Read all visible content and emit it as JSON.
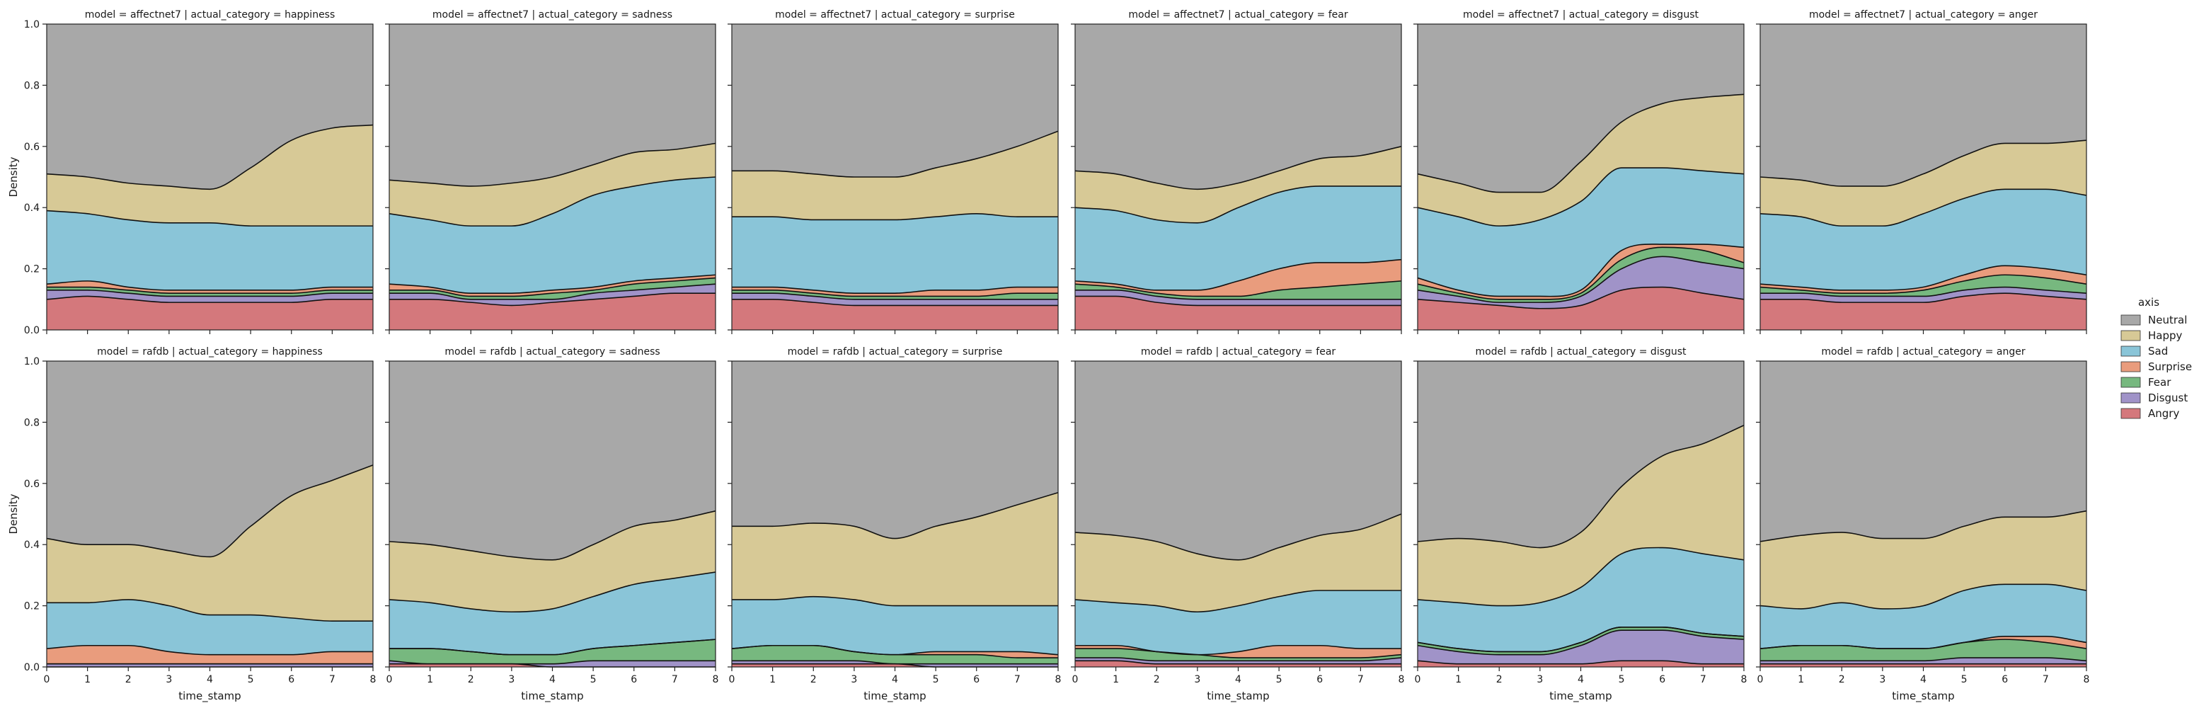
{
  "chart_data": {
    "type": "area",
    "stacked": "fill",
    "rows": [
      "affectnet7",
      "rafdb"
    ],
    "cols": [
      "happiness",
      "sadness",
      "surprise",
      "fear",
      "disgust",
      "anger"
    ],
    "x": [
      0,
      1,
      2,
      3,
      4,
      5,
      6,
      7,
      8
    ],
    "xlim": [
      0,
      8
    ],
    "ylim": [
      0,
      1
    ],
    "x_ticks": [
      0,
      1,
      2,
      3,
      4,
      5,
      6,
      7,
      8
    ],
    "y_ticks": [
      0.0,
      0.2,
      0.4,
      0.6,
      0.8,
      1.0
    ],
    "xlabel": "time_stamp",
    "ylabel": "Density",
    "legend": {
      "title": "axis",
      "position": "right",
      "order": [
        "Neutral",
        "Happy",
        "Sad",
        "Surprise",
        "Fear",
        "Disgust",
        "Angry"
      ]
    },
    "stack_order": [
      "Angry",
      "Disgust",
      "Fear",
      "Surprise",
      "Sad",
      "Happy",
      "Neutral"
    ],
    "colors": {
      "Angry": "#d4787c",
      "Disgust": "#a093c8",
      "Fear": "#77b87f",
      "Surprise": "#e99c7d",
      "Sad": "#8ac5d8",
      "Happy": "#d7c996",
      "Neutral": "#a8a8a8"
    },
    "panels": [
      {
        "model": "affectnet7",
        "category": "happiness",
        "title": "model = affectnet7 | actual_category = happiness",
        "boundaries": [
          [
            0.1,
            0.11,
            0.1,
            0.09,
            0.09,
            0.09,
            0.09,
            0.1,
            0.1
          ],
          [
            0.13,
            0.13,
            0.12,
            0.11,
            0.11,
            0.11,
            0.11,
            0.12,
            0.12
          ],
          [
            0.14,
            0.14,
            0.13,
            0.12,
            0.12,
            0.12,
            0.12,
            0.13,
            0.13
          ],
          [
            0.15,
            0.16,
            0.14,
            0.13,
            0.13,
            0.13,
            0.13,
            0.14,
            0.14
          ],
          [
            0.39,
            0.38,
            0.36,
            0.35,
            0.35,
            0.34,
            0.34,
            0.34,
            0.34
          ],
          [
            0.51,
            0.5,
            0.48,
            0.47,
            0.46,
            0.53,
            0.62,
            0.66,
            0.67
          ]
        ]
      },
      {
        "model": "affectnet7",
        "category": "sadness",
        "title": "model = affectnet7 | actual_category = sadness",
        "boundaries": [
          [
            0.1,
            0.1,
            0.09,
            0.08,
            0.09,
            0.1,
            0.11,
            0.12,
            0.12
          ],
          [
            0.12,
            0.12,
            0.1,
            0.1,
            0.1,
            0.12,
            0.13,
            0.14,
            0.15
          ],
          [
            0.13,
            0.13,
            0.11,
            0.11,
            0.12,
            0.13,
            0.15,
            0.16,
            0.17
          ],
          [
            0.15,
            0.14,
            0.12,
            0.12,
            0.13,
            0.14,
            0.16,
            0.17,
            0.18
          ],
          [
            0.38,
            0.36,
            0.34,
            0.34,
            0.38,
            0.44,
            0.47,
            0.49,
            0.5
          ],
          [
            0.49,
            0.48,
            0.47,
            0.48,
            0.5,
            0.54,
            0.58,
            0.59,
            0.61
          ]
        ]
      },
      {
        "model": "affectnet7",
        "category": "surprise",
        "title": "model = affectnet7 | actual_category = surprise",
        "boundaries": [
          [
            0.1,
            0.1,
            0.09,
            0.08,
            0.08,
            0.08,
            0.08,
            0.08,
            0.08
          ],
          [
            0.12,
            0.12,
            0.11,
            0.1,
            0.1,
            0.1,
            0.1,
            0.1,
            0.1
          ],
          [
            0.13,
            0.13,
            0.12,
            0.11,
            0.11,
            0.11,
            0.11,
            0.12,
            0.12
          ],
          [
            0.14,
            0.14,
            0.13,
            0.12,
            0.12,
            0.13,
            0.13,
            0.14,
            0.14
          ],
          [
            0.37,
            0.37,
            0.36,
            0.36,
            0.36,
            0.37,
            0.38,
            0.37,
            0.37
          ],
          [
            0.52,
            0.52,
            0.51,
            0.5,
            0.5,
            0.53,
            0.56,
            0.6,
            0.65
          ]
        ]
      },
      {
        "model": "affectnet7",
        "category": "fear",
        "title": "model = affectnet7 | actual_category = fear",
        "boundaries": [
          [
            0.11,
            0.11,
            0.09,
            0.08,
            0.08,
            0.08,
            0.08,
            0.08,
            0.08
          ],
          [
            0.13,
            0.13,
            0.11,
            0.1,
            0.1,
            0.1,
            0.1,
            0.1,
            0.1
          ],
          [
            0.15,
            0.14,
            0.12,
            0.11,
            0.11,
            0.13,
            0.14,
            0.15,
            0.16
          ],
          [
            0.16,
            0.15,
            0.13,
            0.13,
            0.16,
            0.2,
            0.22,
            0.22,
            0.23
          ],
          [
            0.4,
            0.39,
            0.36,
            0.35,
            0.4,
            0.45,
            0.47,
            0.47,
            0.47
          ],
          [
            0.52,
            0.51,
            0.48,
            0.46,
            0.48,
            0.52,
            0.56,
            0.57,
            0.6
          ]
        ]
      },
      {
        "model": "affectnet7",
        "category": "disgust",
        "title": "model = affectnet7 | actual_category = disgust",
        "boundaries": [
          [
            0.1,
            0.09,
            0.08,
            0.07,
            0.08,
            0.13,
            0.14,
            0.12,
            0.1
          ],
          [
            0.13,
            0.11,
            0.09,
            0.09,
            0.11,
            0.2,
            0.24,
            0.22,
            0.2
          ],
          [
            0.15,
            0.12,
            0.1,
            0.1,
            0.12,
            0.23,
            0.27,
            0.26,
            0.22
          ],
          [
            0.17,
            0.13,
            0.11,
            0.11,
            0.13,
            0.26,
            0.28,
            0.28,
            0.27
          ],
          [
            0.4,
            0.37,
            0.34,
            0.36,
            0.42,
            0.53,
            0.53,
            0.52,
            0.51
          ],
          [
            0.51,
            0.48,
            0.45,
            0.45,
            0.55,
            0.68,
            0.74,
            0.76,
            0.77
          ]
        ]
      },
      {
        "model": "affectnet7",
        "category": "anger",
        "title": "model = affectnet7 | actual_category = anger",
        "boundaries": [
          [
            0.1,
            0.1,
            0.09,
            0.09,
            0.09,
            0.11,
            0.12,
            0.11,
            0.1
          ],
          [
            0.12,
            0.12,
            0.11,
            0.11,
            0.11,
            0.13,
            0.14,
            0.13,
            0.12
          ],
          [
            0.14,
            0.13,
            0.12,
            0.12,
            0.13,
            0.16,
            0.18,
            0.17,
            0.15
          ],
          [
            0.15,
            0.14,
            0.13,
            0.13,
            0.14,
            0.18,
            0.21,
            0.2,
            0.18
          ],
          [
            0.38,
            0.37,
            0.34,
            0.34,
            0.38,
            0.43,
            0.46,
            0.46,
            0.44
          ],
          [
            0.5,
            0.49,
            0.47,
            0.47,
            0.51,
            0.57,
            0.61,
            0.61,
            0.62
          ]
        ]
      },
      {
        "model": "rafdb",
        "category": "happiness",
        "title": "model = rafdb | actual_category = happiness",
        "boundaries": [
          [
            0.0,
            0.0,
            0.0,
            0.0,
            0.0,
            0.0,
            0.0,
            0.0,
            0.0
          ],
          [
            0.01,
            0.01,
            0.01,
            0.01,
            0.01,
            0.01,
            0.01,
            0.01,
            0.01
          ],
          [
            0.01,
            0.01,
            0.01,
            0.01,
            0.01,
            0.01,
            0.01,
            0.01,
            0.01
          ],
          [
            0.06,
            0.07,
            0.07,
            0.05,
            0.04,
            0.04,
            0.04,
            0.05,
            0.05
          ],
          [
            0.21,
            0.21,
            0.22,
            0.2,
            0.17,
            0.17,
            0.16,
            0.15,
            0.15
          ],
          [
            0.42,
            0.4,
            0.4,
            0.38,
            0.36,
            0.46,
            0.56,
            0.61,
            0.66
          ]
        ]
      },
      {
        "model": "rafdb",
        "category": "sadness",
        "title": "model = rafdb | actual_category = sadness",
        "boundaries": [
          [
            0.01,
            0.01,
            0.01,
            0.01,
            0.0,
            0.0,
            0.0,
            0.0,
            0.0
          ],
          [
            0.02,
            0.01,
            0.01,
            0.01,
            0.01,
            0.02,
            0.02,
            0.02,
            0.02
          ],
          [
            0.06,
            0.06,
            0.05,
            0.04,
            0.04,
            0.06,
            0.07,
            0.08,
            0.09
          ],
          [
            0.06,
            0.06,
            0.05,
            0.04,
            0.04,
            0.06,
            0.07,
            0.08,
            0.09
          ],
          [
            0.22,
            0.21,
            0.19,
            0.18,
            0.19,
            0.23,
            0.27,
            0.29,
            0.31
          ],
          [
            0.41,
            0.4,
            0.38,
            0.36,
            0.35,
            0.4,
            0.46,
            0.48,
            0.51
          ]
        ]
      },
      {
        "model": "rafdb",
        "category": "surprise",
        "title": "model = rafdb | actual_category = surprise",
        "boundaries": [
          [
            0.01,
            0.01,
            0.01,
            0.01,
            0.01,
            0.0,
            0.0,
            0.0,
            0.0
          ],
          [
            0.02,
            0.02,
            0.02,
            0.02,
            0.01,
            0.01,
            0.01,
            0.01,
            0.01
          ],
          [
            0.06,
            0.07,
            0.07,
            0.05,
            0.04,
            0.04,
            0.04,
            0.03,
            0.03
          ],
          [
            0.06,
            0.07,
            0.07,
            0.05,
            0.04,
            0.05,
            0.05,
            0.05,
            0.04
          ],
          [
            0.22,
            0.22,
            0.23,
            0.22,
            0.2,
            0.2,
            0.2,
            0.2,
            0.2
          ],
          [
            0.46,
            0.46,
            0.47,
            0.46,
            0.42,
            0.46,
            0.49,
            0.53,
            0.57
          ]
        ]
      },
      {
        "model": "rafdb",
        "category": "fear",
        "title": "model = rafdb | actual_category = fear",
        "boundaries": [
          [
            0.02,
            0.02,
            0.01,
            0.01,
            0.01,
            0.01,
            0.01,
            0.01,
            0.01
          ],
          [
            0.03,
            0.03,
            0.02,
            0.02,
            0.02,
            0.02,
            0.02,
            0.02,
            0.03
          ],
          [
            0.06,
            0.06,
            0.05,
            0.04,
            0.03,
            0.03,
            0.03,
            0.03,
            0.04
          ],
          [
            0.07,
            0.07,
            0.05,
            0.04,
            0.05,
            0.07,
            0.07,
            0.06,
            0.06
          ],
          [
            0.22,
            0.21,
            0.2,
            0.18,
            0.2,
            0.23,
            0.25,
            0.25,
            0.25
          ],
          [
            0.44,
            0.43,
            0.41,
            0.37,
            0.35,
            0.39,
            0.43,
            0.45,
            0.5
          ]
        ]
      },
      {
        "model": "rafdb",
        "category": "disgust",
        "title": "model = rafdb | actual_category = disgust",
        "boundaries": [
          [
            0.02,
            0.01,
            0.01,
            0.01,
            0.01,
            0.02,
            0.02,
            0.01,
            0.01
          ],
          [
            0.07,
            0.05,
            0.04,
            0.04,
            0.07,
            0.12,
            0.12,
            0.1,
            0.09
          ],
          [
            0.08,
            0.06,
            0.05,
            0.05,
            0.08,
            0.13,
            0.13,
            0.11,
            0.1
          ],
          [
            0.08,
            0.06,
            0.05,
            0.05,
            0.08,
            0.13,
            0.13,
            0.11,
            0.1
          ],
          [
            0.22,
            0.21,
            0.2,
            0.21,
            0.26,
            0.37,
            0.39,
            0.37,
            0.35
          ],
          [
            0.41,
            0.42,
            0.41,
            0.39,
            0.44,
            0.59,
            0.69,
            0.73,
            0.79
          ]
        ]
      },
      {
        "model": "rafdb",
        "category": "anger",
        "title": "model = rafdb | actual_category = anger",
        "boundaries": [
          [
            0.01,
            0.01,
            0.01,
            0.01,
            0.01,
            0.01,
            0.01,
            0.01,
            0.01
          ],
          [
            0.02,
            0.02,
            0.02,
            0.02,
            0.02,
            0.03,
            0.03,
            0.03,
            0.02
          ],
          [
            0.06,
            0.07,
            0.07,
            0.06,
            0.06,
            0.08,
            0.09,
            0.08,
            0.06
          ],
          [
            0.06,
            0.07,
            0.07,
            0.06,
            0.06,
            0.08,
            0.1,
            0.1,
            0.08
          ],
          [
            0.2,
            0.19,
            0.21,
            0.19,
            0.2,
            0.25,
            0.27,
            0.27,
            0.25
          ],
          [
            0.41,
            0.43,
            0.44,
            0.42,
            0.42,
            0.46,
            0.49,
            0.49,
            0.51
          ]
        ]
      }
    ]
  }
}
